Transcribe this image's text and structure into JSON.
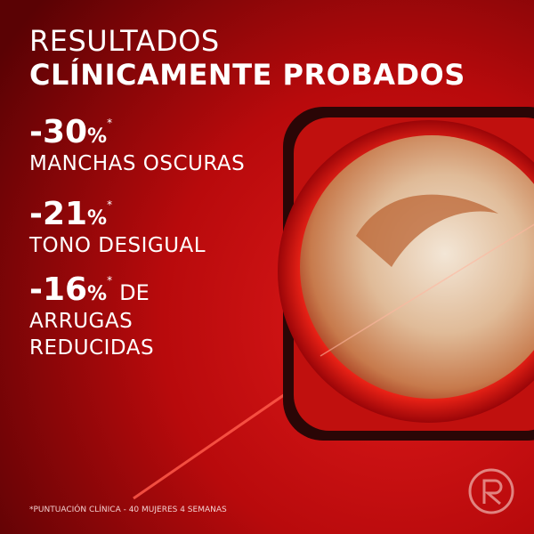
{
  "header": {
    "title_line1": "RESULTADOS",
    "title_line2": "CLÍNICAMENTE PROBADOS"
  },
  "stats": [
    {
      "figure": "-30",
      "percent": "%",
      "asterisk": "*",
      "suffix": null,
      "lines": [
        "MANCHAS OSCURAS"
      ]
    },
    {
      "figure": "-21",
      "percent": "%",
      "asterisk": "*",
      "suffix": null,
      "lines": [
        "TONO DESIGUAL"
      ]
    },
    {
      "figure": "-16",
      "percent": "%",
      "asterisk": "*",
      "suffix": "DE",
      "lines": [
        "ARRUGAS",
        "REDUCIDAS"
      ]
    }
  ],
  "footnote": "*PUNTUACIÓN CLÍNICA - 40 MUJERES 4 SEMANAS"
}
